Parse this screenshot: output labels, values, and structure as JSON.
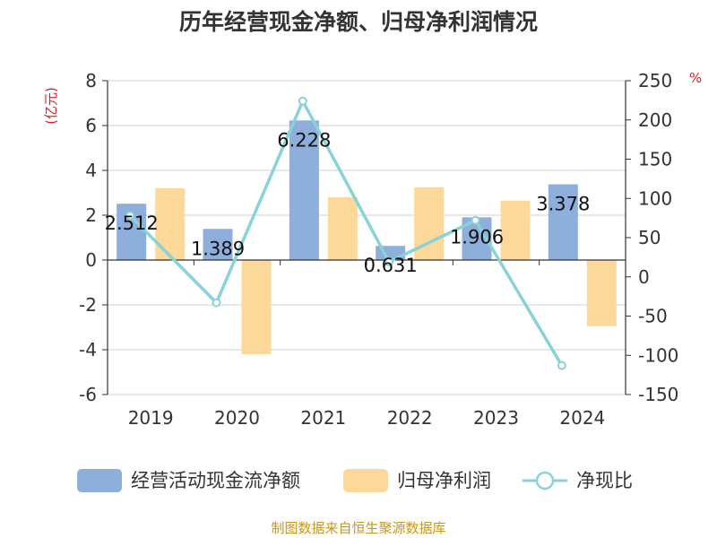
{
  "chart_data": {
    "type": "bar",
    "title": "历年经营现金净额、归母净利润情况",
    "categories": [
      "2019",
      "2020",
      "2021",
      "2022",
      "2023",
      "2024"
    ],
    "y_left": {
      "unit": "(亿元)",
      "ylim": [
        -6,
        8
      ],
      "ticks": [
        8,
        6,
        4,
        2,
        0,
        -2,
        -4,
        -6
      ]
    },
    "y_right": {
      "unit": "%",
      "ylim": [
        -150,
        250
      ],
      "ticks": [
        250,
        200,
        150,
        100,
        50,
        0,
        -50,
        -100,
        -150
      ]
    },
    "series": [
      {
        "name": "经营活动现金流净额",
        "type": "bar",
        "axis": "left",
        "color": "#8eaedb",
        "values": [
          2.512,
          1.389,
          6.228,
          0.631,
          1.906,
          3.378
        ],
        "labels": [
          "2.512",
          "1.389",
          "6.228",
          "0.631",
          "1.906",
          "3.378"
        ]
      },
      {
        "name": "归母净利润",
        "type": "bar",
        "axis": "left",
        "color": "#fdd999",
        "values": [
          3.2,
          -4.2,
          2.8,
          3.25,
          2.65,
          -2.95
        ]
      },
      {
        "name": "净现比",
        "type": "line",
        "axis": "right",
        "color": "#88d2d8",
        "values": [
          78,
          -33,
          224,
          19,
          72,
          -113
        ]
      }
    ],
    "grid": true,
    "legend_position": "bottom"
  },
  "source": "制图数据来自恒生聚源数据库"
}
